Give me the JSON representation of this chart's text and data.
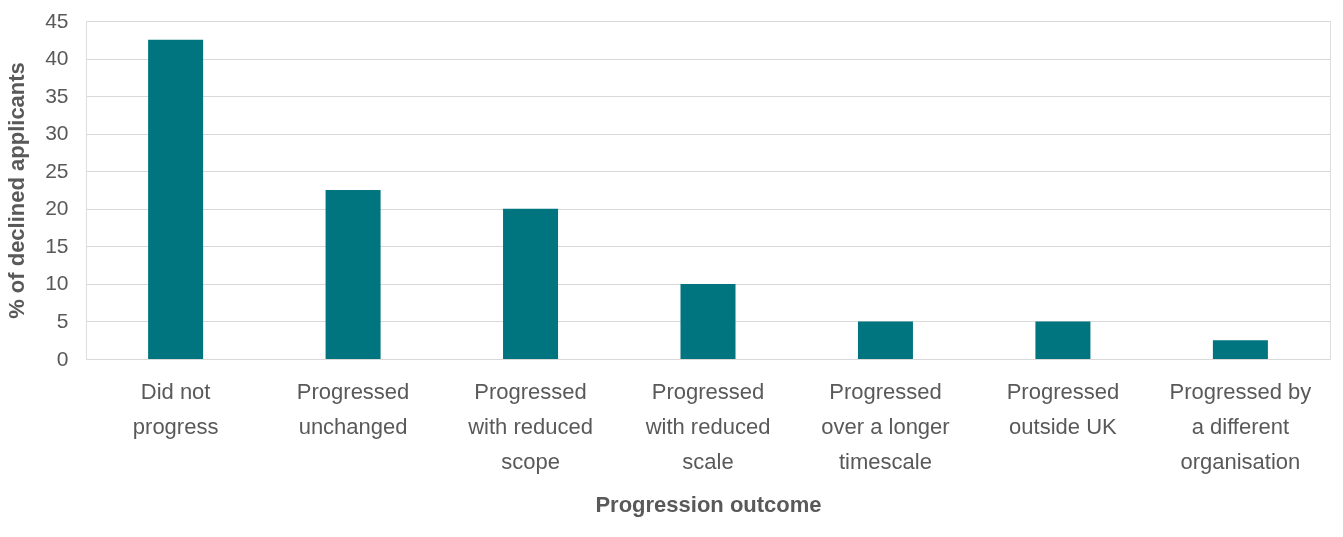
{
  "chart_data": {
    "type": "bar",
    "xlabel": "Progression outcome",
    "ylabel": "% of declined applicants",
    "categories": [
      "Did not progress",
      "Progressed unchanged",
      "Progressed with reduced scope",
      "Progressed with reduced scale",
      "Progressed over a longer timescale",
      "Progressed outside UK",
      "Progressed by a different organisation"
    ],
    "values": [
      42.5,
      22.5,
      20,
      10,
      5,
      5,
      2.5
    ],
    "color": "#00757f",
    "ylim": [
      0,
      45
    ],
    "yticks": [
      0,
      5,
      10,
      15,
      20,
      25,
      30,
      35,
      40,
      45
    ],
    "grid": "y"
  }
}
